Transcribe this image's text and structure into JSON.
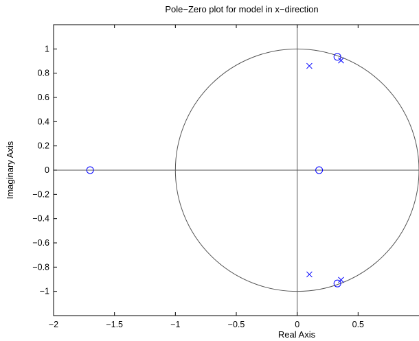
{
  "chart_data": {
    "type": "scatter",
    "title": "Pole−Zero plot for model in x−direction",
    "xlabel": "Real Axis",
    "ylabel": "Imaginary Axis",
    "xlim": [
      -2,
      1
    ],
    "ylim": [
      -1.2,
      1.2
    ],
    "grid": false,
    "x_ticks": [
      -2,
      -1.5,
      -1,
      -0.5,
      0,
      0.5
    ],
    "x_tick_labels": [
      "−2",
      "−1.5",
      "−1",
      "−0.5",
      "0",
      "0.5"
    ],
    "y_ticks": [
      1,
      0.8,
      0.6,
      0.4,
      0.2,
      0,
      -0.2,
      -0.4,
      -0.6,
      -0.8,
      -1
    ],
    "y_tick_labels": [
      "1",
      "0.8",
      "0.6",
      "0.4",
      "0.2",
      "0",
      "−0.2",
      "−0.4",
      "−0.6",
      "−0.8",
      "−1"
    ],
    "unit_circle": {
      "center": [
        0,
        0
      ],
      "radius": 1
    },
    "reference_lines": {
      "real_axis": 0,
      "imaginary_axis": 0
    },
    "series": [
      {
        "marker": "o",
        "color": "#0000ff",
        "points": [
          {
            "x": -1.7,
            "y": 0.0
          },
          {
            "x": 0.18,
            "y": 0.0
          },
          {
            "x": 0.33,
            "y": 0.935
          },
          {
            "x": 0.33,
            "y": -0.935
          }
        ]
      },
      {
        "marker": "x",
        "color": "#0000ff",
        "points": [
          {
            "x": 0.1,
            "y": 0.86
          },
          {
            "x": 0.1,
            "y": -0.86
          },
          {
            "x": 0.36,
            "y": 0.905
          },
          {
            "x": 0.36,
            "y": -0.905
          }
        ]
      }
    ]
  }
}
